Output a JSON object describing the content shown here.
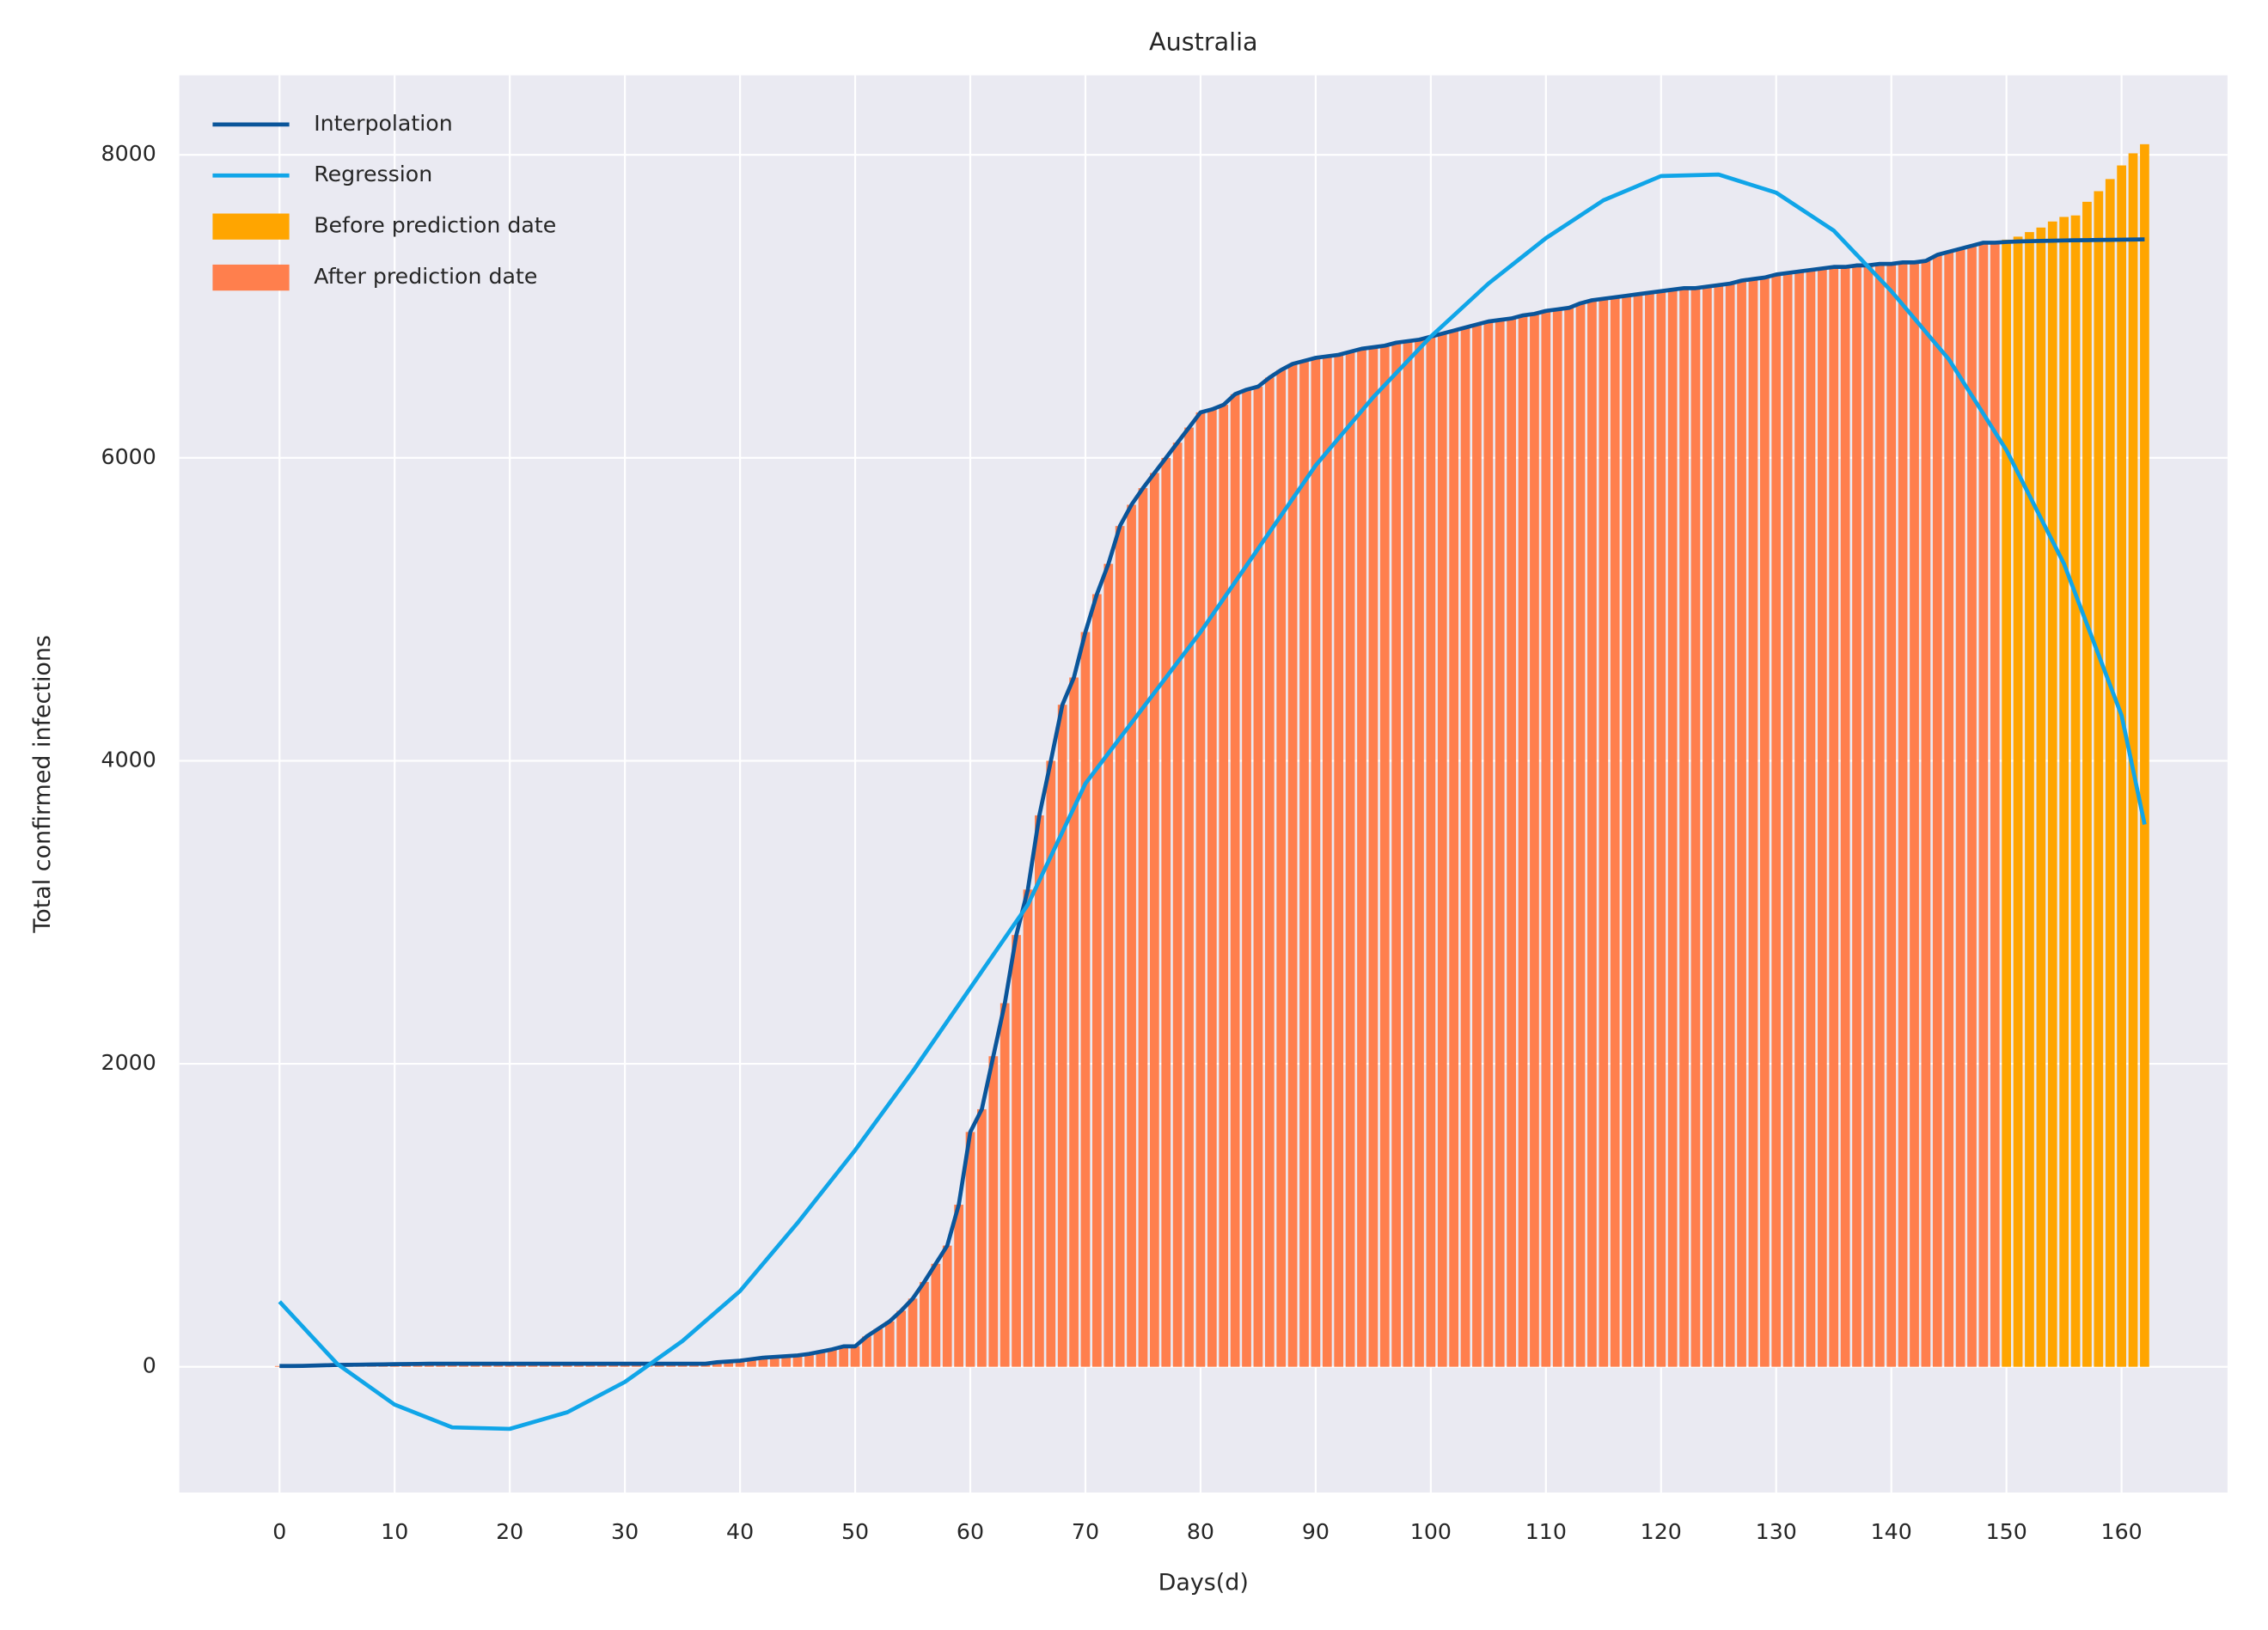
{
  "chart_data": {
    "type": "bar",
    "title": "Australia",
    "x_label": "Days(d)",
    "y_label": "Total confirmed infections",
    "xlim": [
      -8.7,
      169.2
    ],
    "ylim": [
      -830,
      8525
    ],
    "xticks": [
      0,
      10,
      20,
      30,
      40,
      50,
      60,
      70,
      80,
      90,
      100,
      110,
      120,
      130,
      140,
      150,
      160
    ],
    "yticks": [
      0,
      2000,
      4000,
      6000,
      8000
    ],
    "grid": true,
    "legend": "upper left",
    "background": "#eaeaf2",
    "series": [
      {
        "name": "Interpolation",
        "type": "line",
        "color": "#0a559a",
        "x": [
          0,
          1,
          2,
          3,
          4,
          5,
          6,
          7,
          8,
          9,
          10,
          11,
          12,
          13,
          14,
          15,
          16,
          17,
          18,
          19,
          20,
          21,
          22,
          23,
          24,
          25,
          26,
          27,
          28,
          29,
          30,
          31,
          32,
          33,
          34,
          35,
          36,
          37,
          38,
          39,
          40,
          41,
          42,
          43,
          44,
          45,
          46,
          47,
          48,
          49,
          50,
          51,
          52,
          53,
          54,
          55,
          56,
          57,
          58,
          59,
          60,
          61,
          62,
          63,
          64,
          65,
          66,
          67,
          68,
          69,
          70,
          71,
          72,
          73,
          74,
          75,
          76,
          77,
          78,
          79,
          80,
          81,
          82,
          83,
          84,
          85,
          86,
          87,
          88,
          89,
          90,
          91,
          92,
          93,
          94,
          95,
          96,
          97,
          98,
          99,
          100,
          101,
          102,
          103,
          104,
          105,
          106,
          107,
          108,
          109,
          110,
          111,
          112,
          113,
          114,
          115,
          116,
          117,
          118,
          119,
          120,
          121,
          122,
          123,
          124,
          125,
          126,
          127,
          128,
          129,
          130,
          131,
          132,
          133,
          134,
          135,
          136,
          137,
          138,
          139,
          140,
          141,
          142,
          143,
          144,
          145,
          146,
          147,
          148,
          149,
          150,
          151,
          152,
          153,
          154,
          155,
          156,
          157,
          158,
          159,
          160,
          161,
          162
        ],
        "values": [
          5,
          5,
          6,
          8,
          10,
          12,
          13,
          14,
          15,
          16,
          17,
          18,
          19,
          20,
          20,
          20,
          20,
          20,
          20,
          20,
          20,
          20,
          20,
          20,
          20,
          20,
          20,
          20,
          20,
          20,
          20,
          20,
          20,
          20,
          20,
          20,
          20,
          20,
          30,
          35,
          40,
          50,
          60,
          65,
          70,
          75,
          85,
          100,
          115,
          135,
          135,
          200,
          250,
          300,
          370,
          450,
          560,
          680,
          800,
          1070,
          1550,
          1700,
          2050,
          2400,
          2850,
          3150,
          3640,
          4000,
          4370,
          4550,
          4850,
          5100,
          5300,
          5550,
          5690,
          5800,
          5900,
          6000,
          6100,
          6200,
          6300,
          6320,
          6350,
          6420,
          6450,
          6470,
          6530,
          6580,
          6620,
          6640,
          6660,
          6670,
          6680,
          6700,
          6720,
          6730,
          6740,
          6760,
          6770,
          6780,
          6800,
          6820,
          6840,
          6860,
          6880,
          6900,
          6910,
          6920,
          6940,
          6950,
          6970,
          6980,
          6990,
          7020,
          7040,
          7050,
          7060,
          7070,
          7080,
          7090,
          7100,
          7110,
          7120,
          7120,
          7130,
          7140,
          7150,
          7170,
          7180,
          7190,
          7210,
          7220,
          7230,
          7240,
          7250,
          7260,
          7260,
          7270,
          7270,
          7280,
          7280,
          7290,
          7290,
          7300,
          7340,
          7360,
          7380,
          7400,
          7420,
          7420,
          7425,
          7428,
          7430,
          7432,
          7433,
          7435,
          7436,
          7437,
          7438,
          7439,
          7440,
          7441,
          7442
        ]
      },
      {
        "name": "Regression",
        "type": "line",
        "color": "#10a5e8",
        "x": [
          0,
          5,
          10,
          15,
          20,
          25,
          30,
          35,
          40,
          45,
          50,
          55,
          60,
          65,
          70,
          75,
          80,
          85,
          90,
          95,
          100,
          105,
          110,
          115,
          120,
          125,
          130,
          135,
          140,
          145,
          150,
          155,
          160,
          162
        ],
        "values": [
          430,
          20,
          -250,
          -400,
          -410,
          -300,
          -100,
          170,
          500,
          950,
          1430,
          1950,
          2500,
          3050,
          3850,
          4350,
          4850,
          5400,
          5950,
          6400,
          6800,
          7150,
          7450,
          7700,
          7860,
          7870,
          7750,
          7500,
          7100,
          6650,
          6050,
          5300,
          4300,
          3580
        ]
      },
      {
        "name": "Before prediction date",
        "type": "bar",
        "color": "#ffa500",
        "x": [
          150,
          151,
          152,
          153,
          154,
          155,
          156,
          157,
          158,
          159,
          160,
          161,
          162
        ],
        "values": [
          7440,
          7460,
          7490,
          7520,
          7560,
          7590,
          7600,
          7690,
          7760,
          7840,
          7930,
          8010,
          8070
        ]
      },
      {
        "name": "After prediction date",
        "type": "bar",
        "color": "#ff7f4d",
        "x": [
          0,
          1,
          2,
          3,
          4,
          5,
          6,
          7,
          8,
          9,
          10,
          11,
          12,
          13,
          14,
          15,
          16,
          17,
          18,
          19,
          20,
          21,
          22,
          23,
          24,
          25,
          26,
          27,
          28,
          29,
          30,
          31,
          32,
          33,
          34,
          35,
          36,
          37,
          38,
          39,
          40,
          41,
          42,
          43,
          44,
          45,
          46,
          47,
          48,
          49,
          50,
          51,
          52,
          53,
          54,
          55,
          56,
          57,
          58,
          59,
          60,
          61,
          62,
          63,
          64,
          65,
          66,
          67,
          68,
          69,
          70,
          71,
          72,
          73,
          74,
          75,
          76,
          77,
          78,
          79,
          80,
          81,
          82,
          83,
          84,
          85,
          86,
          87,
          88,
          89,
          90,
          91,
          92,
          93,
          94,
          95,
          96,
          97,
          98,
          99,
          100,
          101,
          102,
          103,
          104,
          105,
          106,
          107,
          108,
          109,
          110,
          111,
          112,
          113,
          114,
          115,
          116,
          117,
          118,
          119,
          120,
          121,
          122,
          123,
          124,
          125,
          126,
          127,
          128,
          129,
          130,
          131,
          132,
          133,
          134,
          135,
          136,
          137,
          138,
          139,
          140,
          141,
          142,
          143,
          144,
          145,
          146,
          147,
          148,
          149
        ],
        "values": [
          5,
          5,
          6,
          8,
          10,
          12,
          13,
          14,
          15,
          16,
          17,
          18,
          19,
          20,
          20,
          20,
          20,
          20,
          20,
          20,
          20,
          20,
          20,
          20,
          20,
          20,
          20,
          20,
          20,
          20,
          20,
          20,
          20,
          20,
          20,
          20,
          20,
          20,
          30,
          35,
          40,
          50,
          60,
          65,
          70,
          75,
          85,
          100,
          115,
          135,
          135,
          200,
          250,
          300,
          370,
          450,
          560,
          680,
          800,
          1070,
          1550,
          1700,
          2050,
          2400,
          2850,
          3150,
          3640,
          4000,
          4370,
          4550,
          4850,
          5100,
          5300,
          5550,
          5690,
          5800,
          5900,
          6000,
          6100,
          6200,
          6300,
          6320,
          6350,
          6420,
          6450,
          6470,
          6530,
          6580,
          6620,
          6640,
          6660,
          6670,
          6680,
          6700,
          6720,
          6730,
          6740,
          6760,
          6770,
          6780,
          6800,
          6820,
          6840,
          6860,
          6880,
          6900,
          6910,
          6920,
          6940,
          6950,
          6970,
          6980,
          6990,
          7020,
          7040,
          7050,
          7060,
          7070,
          7080,
          7090,
          7100,
          7110,
          7120,
          7120,
          7130,
          7140,
          7150,
          7170,
          7180,
          7190,
          7210,
          7220,
          7230,
          7240,
          7250,
          7260,
          7260,
          7270,
          7270,
          7280,
          7280,
          7290,
          7290,
          7300,
          7340,
          7360,
          7380,
          7400,
          7420,
          7420
        ]
      }
    ]
  }
}
